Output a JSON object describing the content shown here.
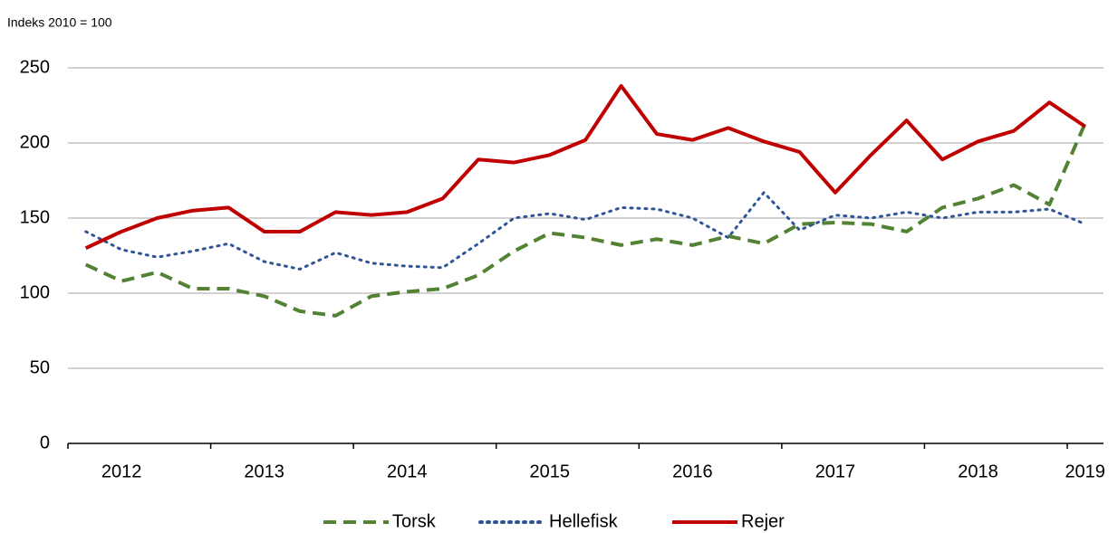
{
  "chart_data": {
    "type": "line",
    "y_label": "Indeks 2010 = 100",
    "categories": [
      null,
      "2012",
      null,
      null,
      null,
      "2013",
      null,
      null,
      null,
      "2014",
      null,
      null,
      null,
      "2015",
      null,
      null,
      null,
      "2016",
      null,
      null,
      null,
      "2017",
      null,
      null,
      null,
      "2018",
      null,
      null,
      "2019"
    ],
    "series": [
      {
        "name": "Torsk",
        "color": "#548235",
        "dash": "dashed",
        "values": [
          119,
          108,
          114,
          103,
          103,
          98,
          88,
          85,
          98,
          101,
          103,
          112,
          128,
          140,
          137,
          132,
          136,
          132,
          138,
          133,
          146,
          147,
          146,
          141,
          157,
          163,
          172,
          159,
          213
        ]
      },
      {
        "name": "Hellefisk",
        "color": "#2f5597",
        "dash": "dotted",
        "values": [
          141,
          129,
          124,
          128,
          133,
          121,
          116,
          127,
          120,
          118,
          117,
          133,
          150,
          153,
          149,
          157,
          156,
          150,
          137,
          167,
          142,
          152,
          150,
          154,
          150,
          154,
          154,
          156,
          146
        ]
      },
      {
        "name": "Rejer",
        "color": "#c00000",
        "dash": "solid",
        "values": [
          130,
          141,
          150,
          155,
          157,
          141,
          141,
          154,
          152,
          154,
          163,
          189,
          187,
          192,
          202,
          238,
          206,
          202,
          210,
          201,
          194,
          167,
          192,
          215,
          189,
          201,
          208,
          227,
          211
        ]
      }
    ],
    "ylim": [
      0,
      250
    ],
    "yticks": [
      0,
      50,
      100,
      150,
      200,
      250
    ],
    "grid": true
  }
}
